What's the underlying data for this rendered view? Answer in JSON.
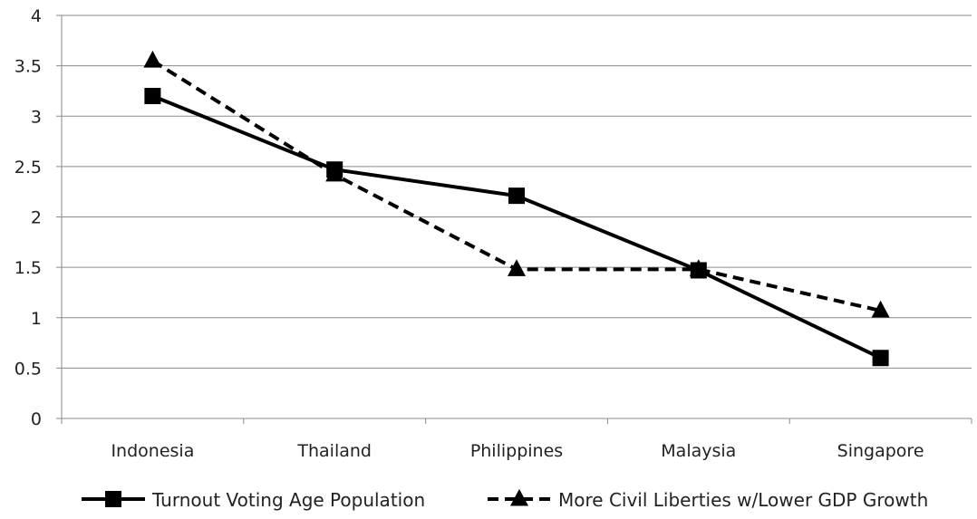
{
  "chart_data": {
    "type": "line",
    "title": "",
    "xlabel": "",
    "ylabel": "",
    "ylim": [
      0,
      4
    ],
    "yticks": [
      0,
      0.5,
      1,
      1.5,
      2,
      2.5,
      3,
      3.5,
      4
    ],
    "ytick_labels": [
      "0",
      "0.5",
      "1",
      "1.5",
      "2",
      "2.5",
      "3",
      "3.5",
      "4"
    ],
    "categories": [
      "Indonesia",
      "Thailand",
      "Philippines",
      "Malaysia",
      "Singapore"
    ],
    "grid": true,
    "legend_position": "bottom",
    "series": [
      {
        "name": "Turnout Voting Age Population",
        "values": [
          3.2,
          2.47,
          2.21,
          1.47,
          0.6
        ],
        "line_style": "solid",
        "marker": "square",
        "color": "#000000"
      },
      {
        "name": "More Civil Liberties w/Lower GDP Growth",
        "values": [
          3.55,
          2.42,
          1.48,
          1.48,
          1.07
        ],
        "line_style": "dashed",
        "marker": "triangle",
        "color": "#000000"
      }
    ]
  }
}
